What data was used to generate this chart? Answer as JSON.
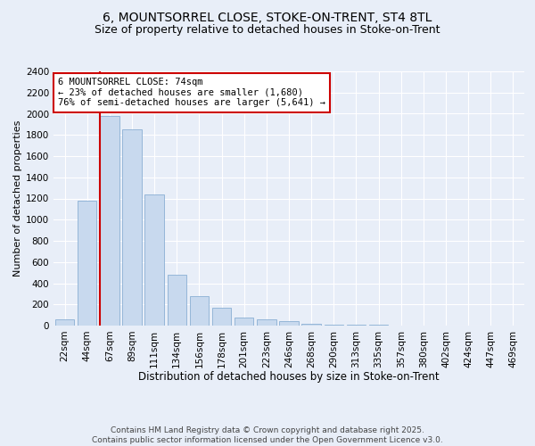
{
  "title1": "6, MOUNTSORREL CLOSE, STOKE-ON-TRENT, ST4 8TL",
  "title2": "Size of property relative to detached houses in Stoke-on-Trent",
  "xlabel": "Distribution of detached houses by size in Stoke-on-Trent",
  "ylabel": "Number of detached properties",
  "categories": [
    "22sqm",
    "44sqm",
    "67sqm",
    "89sqm",
    "111sqm",
    "134sqm",
    "156sqm",
    "178sqm",
    "201sqm",
    "223sqm",
    "246sqm",
    "268sqm",
    "290sqm",
    "313sqm",
    "335sqm",
    "357sqm",
    "380sqm",
    "402sqm",
    "424sqm",
    "447sqm",
    "469sqm"
  ],
  "values": [
    55,
    1180,
    1980,
    1850,
    1240,
    480,
    280,
    170,
    80,
    55,
    45,
    20,
    10,
    5,
    5,
    3,
    1,
    1,
    1,
    0,
    1
  ],
  "bar_color": "#c8d9ee",
  "bar_edgecolor": "#8aafd4",
  "vline_color": "#cc0000",
  "annotation_text": "6 MOUNTSORREL CLOSE: 74sqm\n← 23% of detached houses are smaller (1,680)\n76% of semi-detached houses are larger (5,641) →",
  "annotation_box_edgecolor": "#cc0000",
  "annotation_box_facecolor": "#ffffff",
  "ylim": [
    0,
    2400
  ],
  "yticks": [
    0,
    200,
    400,
    600,
    800,
    1000,
    1200,
    1400,
    1600,
    1800,
    2000,
    2200,
    2400
  ],
  "footer": "Contains HM Land Registry data © Crown copyright and database right 2025.\nContains public sector information licensed under the Open Government Licence v3.0.",
  "bg_color": "#e8eef8",
  "grid_color": "#ffffff",
  "title1_fontsize": 10,
  "title2_fontsize": 9,
  "xlabel_fontsize": 8.5,
  "ylabel_fontsize": 8,
  "tick_fontsize": 7.5,
  "annotation_fontsize": 7.5,
  "footer_fontsize": 6.5
}
